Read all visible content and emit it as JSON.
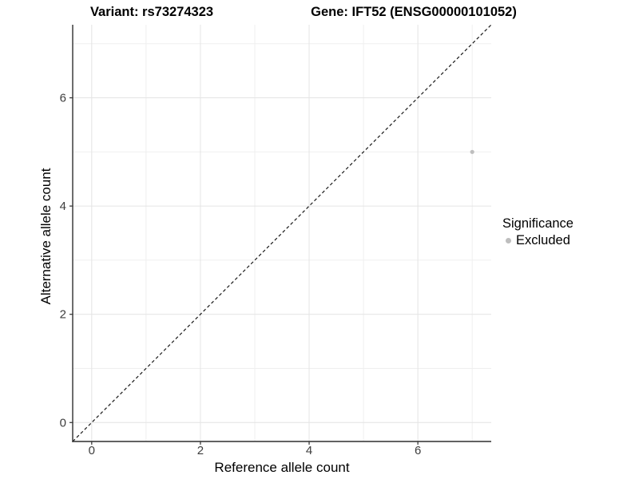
{
  "header": {
    "variant_title": "Variant: rs73274323",
    "gene_title": "Gene: IFT52 (ENSG00000101052)"
  },
  "legend": {
    "title": "Significance",
    "items": [
      {
        "label": "Excluded",
        "color": "#bebebe"
      }
    ]
  },
  "chart_data": {
    "type": "scatter",
    "title_left": "Variant: rs73274323",
    "title_right": "Gene: IFT52 (ENSG00000101052)",
    "xlabel": "Reference allele count",
    "ylabel": "Alternative allele count",
    "xlim": [
      -0.35,
      7.35
    ],
    "ylim": [
      -0.35,
      7.35
    ],
    "xticks": [
      0,
      2,
      4,
      6
    ],
    "yticks": [
      0,
      2,
      4,
      6
    ],
    "x_minor_ticks": [
      1,
      3,
      5,
      7
    ],
    "y_minor_ticks": [
      1,
      3,
      5,
      7
    ],
    "grid": true,
    "legend_position": "right",
    "series": [
      {
        "name": "Excluded",
        "color": "#bebebe",
        "points": [
          {
            "x": 7,
            "y": 5
          }
        ]
      }
    ],
    "reference_line": {
      "type": "identity",
      "slope": 1,
      "intercept": 0,
      "style": "dashed",
      "color": "#1a1a1a"
    },
    "colors": {
      "axis_line": "#2f2f2f",
      "tick_label": "#3d3d3d",
      "grid_major": "#e4e4e4",
      "grid_minor": "#efefef",
      "panel_background": "#ffffff"
    }
  }
}
